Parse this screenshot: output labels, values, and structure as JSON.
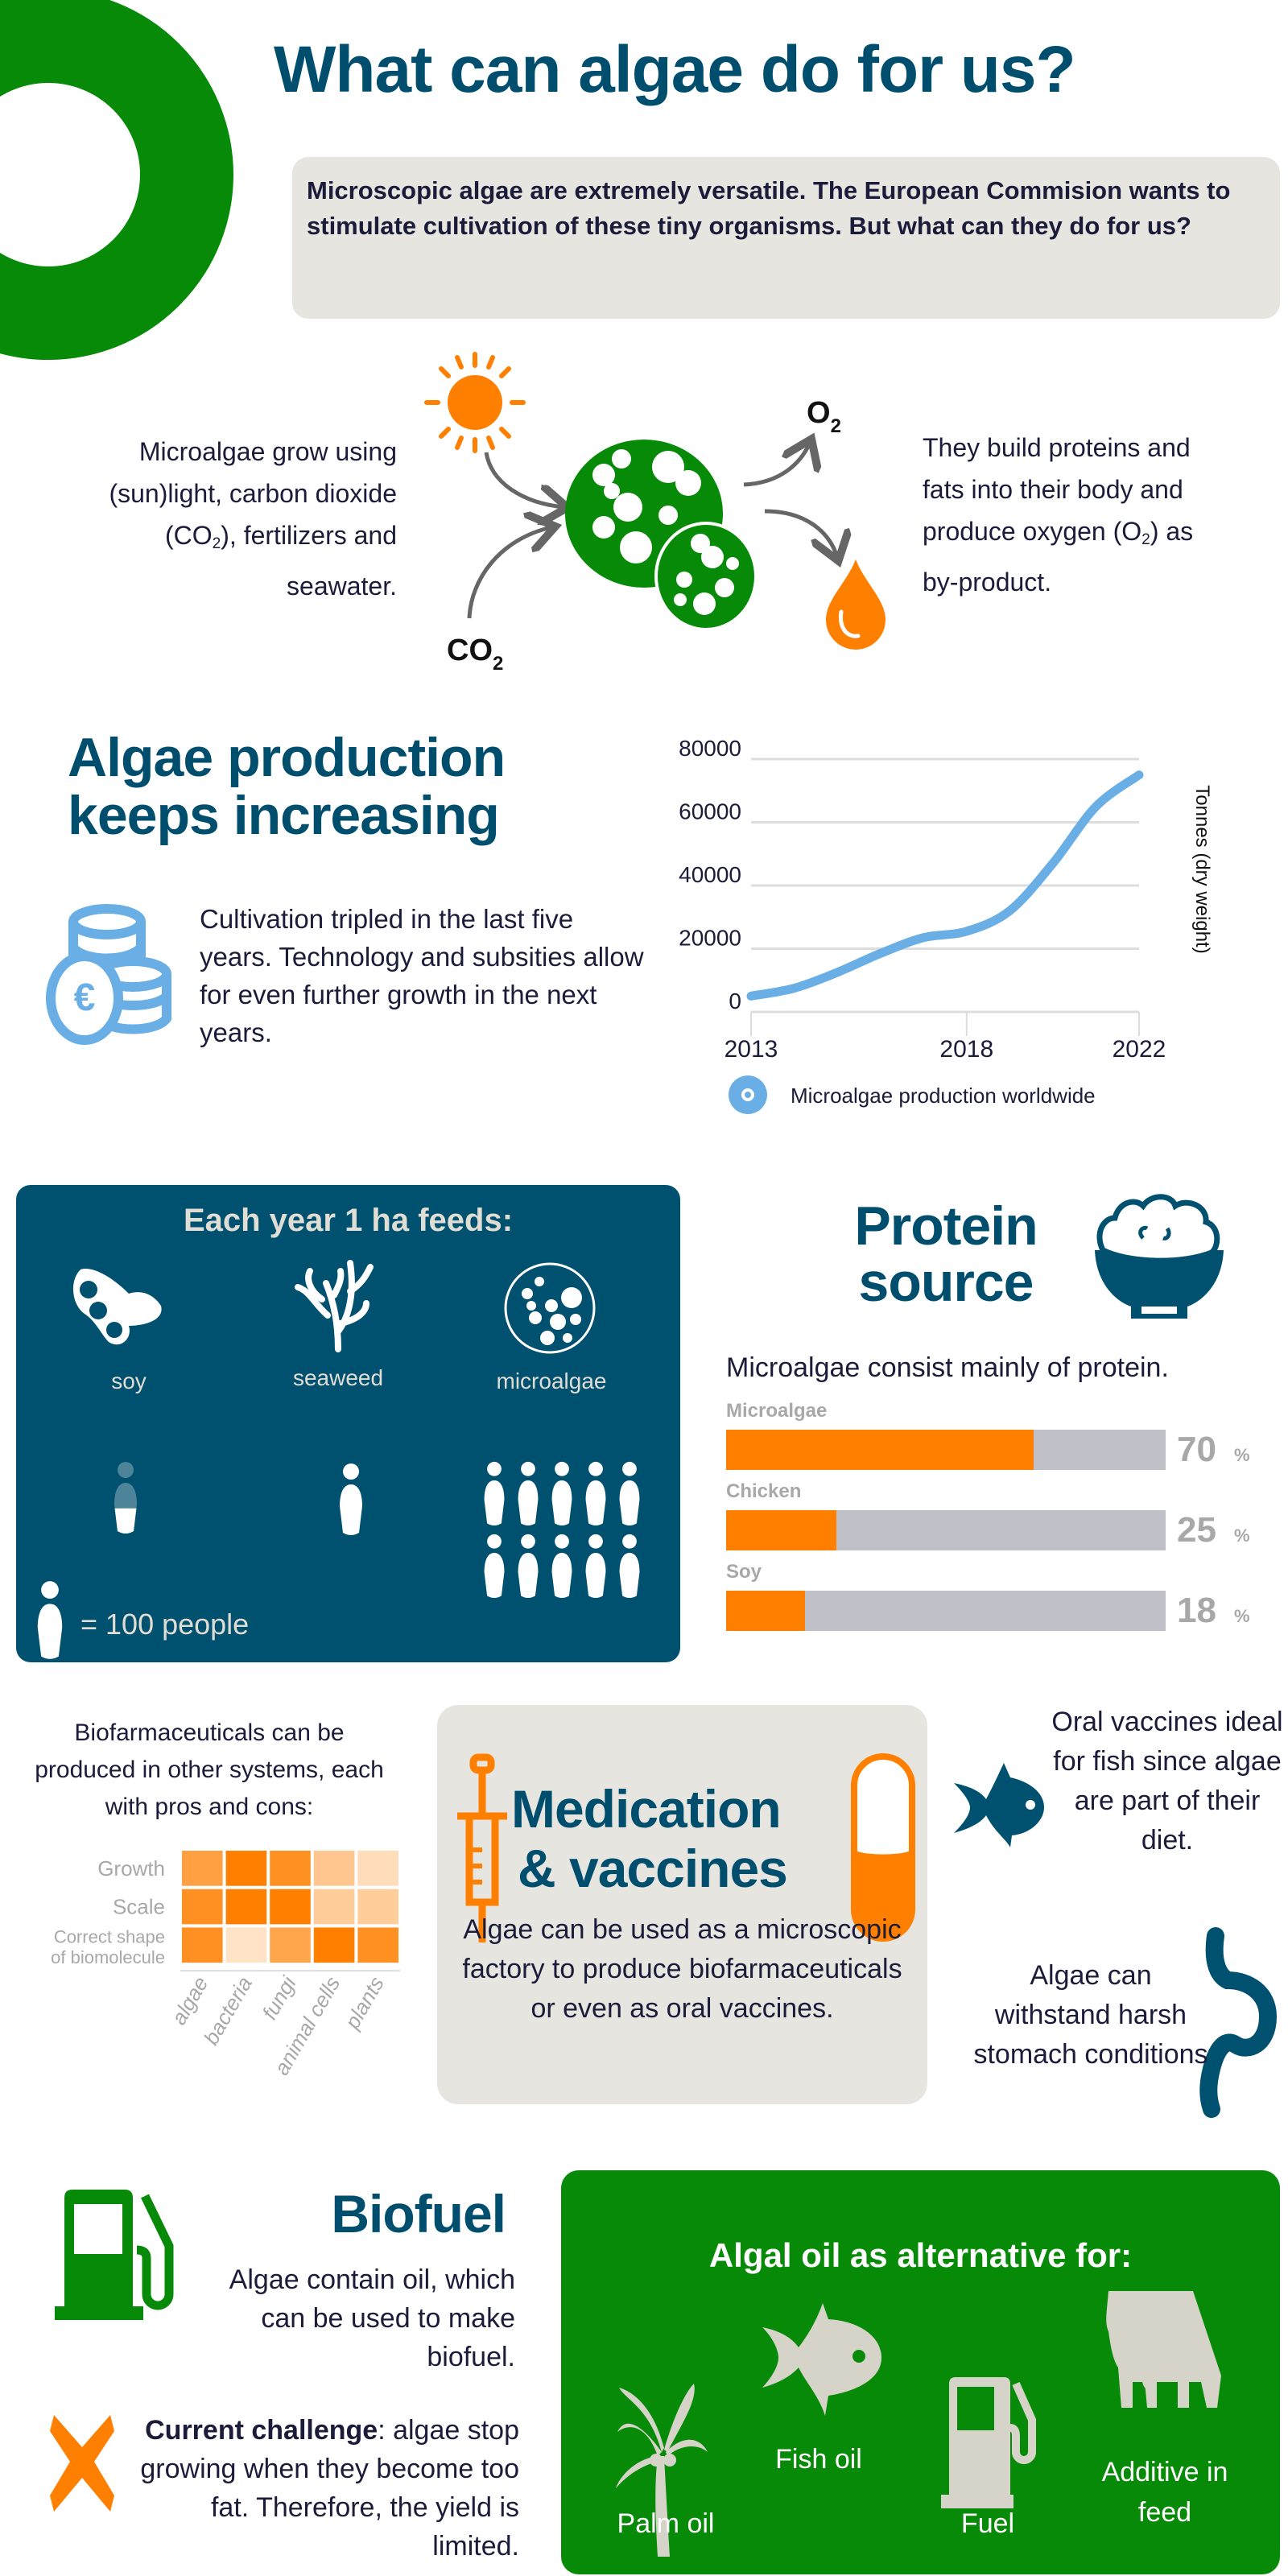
{
  "colors": {
    "title_blue": "#004e6e",
    "green": "#078a07",
    "orange": "#ff7f00",
    "navy_text": "#1b1b3a",
    "panel_gray": "#e6e5e0",
    "chart_blue": "#6aaee6",
    "feed_panel": "#00506f",
    "icon_beige": "#d6d3c9"
  },
  "header": {
    "title": "What can algae do for us?",
    "intro": "Microscopic algae are extremely versatile. The European Commision wants to stimulate cultivation of these tiny organisms. But what can they do for us?"
  },
  "growth": {
    "left_lines": [
      "Microalgae grow using",
      "(sun)light, carbon dioxide",
      "(CO",
      "2",
      "), fertilizers and",
      "seawater."
    ],
    "right_lines": [
      "They build proteins and",
      "fats into their body and",
      "produce oxygen (O",
      "2",
      ") as",
      "by-product."
    ],
    "o2_label": "O",
    "o2_sub": "2",
    "co2_label": "CO",
    "co2_sub": "2",
    "icons": [
      "sun-icon",
      "algae-cells-icon",
      "oil-drop-icon"
    ]
  },
  "production": {
    "title_line1": "Algae production",
    "title_line2": "keeps increasing",
    "text": "Cultivation tripled in the last five years. Technology and subsities allow for even further growth in the next years.",
    "icon": "euro-coins-icon"
  },
  "chart_data": {
    "type": "line",
    "x": [
      2013,
      2014,
      2015,
      2016,
      2017,
      2018,
      2019,
      2020,
      2021,
      2022
    ],
    "series": [
      {
        "name": "Microalgae production worldwide",
        "values": [
          5000,
          7500,
          12500,
          18500,
          23500,
          25500,
          32000,
          47000,
          65000,
          75000
        ]
      }
    ],
    "xticks": [
      "2013",
      "2018",
      "2022"
    ],
    "yticks": [
      "0",
      "20000",
      "40000",
      "60000",
      "80000"
    ],
    "xlim": [
      2013,
      2022
    ],
    "ylim": [
      0,
      80000
    ],
    "ylabel": "Tonnes (dry weight)",
    "xlabel": "",
    "grid": true,
    "legend": "bottom",
    "color": "#6aaee6"
  },
  "feeds": {
    "title": "Each year 1 ha feeds:",
    "items": [
      {
        "label": "soy",
        "icon": "soybean-icon",
        "people_icons": 0.35
      },
      {
        "label": "seaweed",
        "icon": "seaweed-icon",
        "people_icons": 1
      },
      {
        "label": "microalgae",
        "icon": "microalgae-icon",
        "people_icons": 10
      }
    ],
    "legend_text": "= 100  people"
  },
  "protein": {
    "title_line1": "Protein",
    "title_line2": "source",
    "icon": "rice-bowl-icon",
    "subtitle": "Microalgae consist mainly of protein.",
    "bars": [
      {
        "label": "Microalgae",
        "value": 70,
        "display": "70"
      },
      {
        "label": "Chicken",
        "value": 25,
        "display": "25"
      },
      {
        "label": "Soy",
        "value": 18,
        "display": "18"
      }
    ],
    "unit": "%"
  },
  "medication": {
    "left_text": "Biofarmaceuticals can be produced in other systems, each with pros and cons:",
    "heatmap": {
      "type": "heatmap",
      "rows": [
        "Growth",
        "Scale",
        "Correct shape of biomolecule"
      ],
      "row_label_lines": [
        [
          "Growth"
        ],
        [
          "Scale"
        ],
        [
          "Correct shape",
          "of biomolecule"
        ]
      ],
      "columns": [
        "algae",
        "bacteria",
        "fungi",
        "animal cells",
        "plants"
      ],
      "values": [
        [
          0.7,
          1.0,
          0.85,
          0.35,
          0.15
        ],
        [
          0.85,
          1.0,
          1.0,
          0.3,
          0.3
        ],
        [
          0.85,
          0.1,
          0.65,
          1.0,
          0.85
        ]
      ]
    },
    "title_line1": "Medication",
    "title_line2": "& vaccines",
    "body": "Algae can be used as a microscopic factory to produce biofarmaceuticals or even as oral vaccines.",
    "fish_text": "Oral vaccines ideal for fish since algae are part of their diet.",
    "stomach_text": "Algae can withstand harsh stomach conditions",
    "icons": [
      "syringe-icon",
      "capsule-icon",
      "fish-icon",
      "stomach-icon"
    ]
  },
  "biofuel": {
    "title": "Biofuel",
    "text": "Algae  contain oil, which can be used to make biofuel.",
    "challenge_bold": "Current challenge",
    "challenge_rest": ": algae stop growing when they become too fat. Therefore, the yield is limited.",
    "icons": [
      "fuel-pump-icon",
      "cross-icon"
    ]
  },
  "alternatives": {
    "title": "Algal oil as alternative for:",
    "items": [
      {
        "label": "Fish oil",
        "icon": "fish-icon"
      },
      {
        "label": "Additive in feed",
        "icon": "cow-icon"
      },
      {
        "label": "Palm oil",
        "icon": "palm-tree-icon"
      },
      {
        "label": "Fuel",
        "icon": "fuel-pump-icon"
      }
    ]
  }
}
